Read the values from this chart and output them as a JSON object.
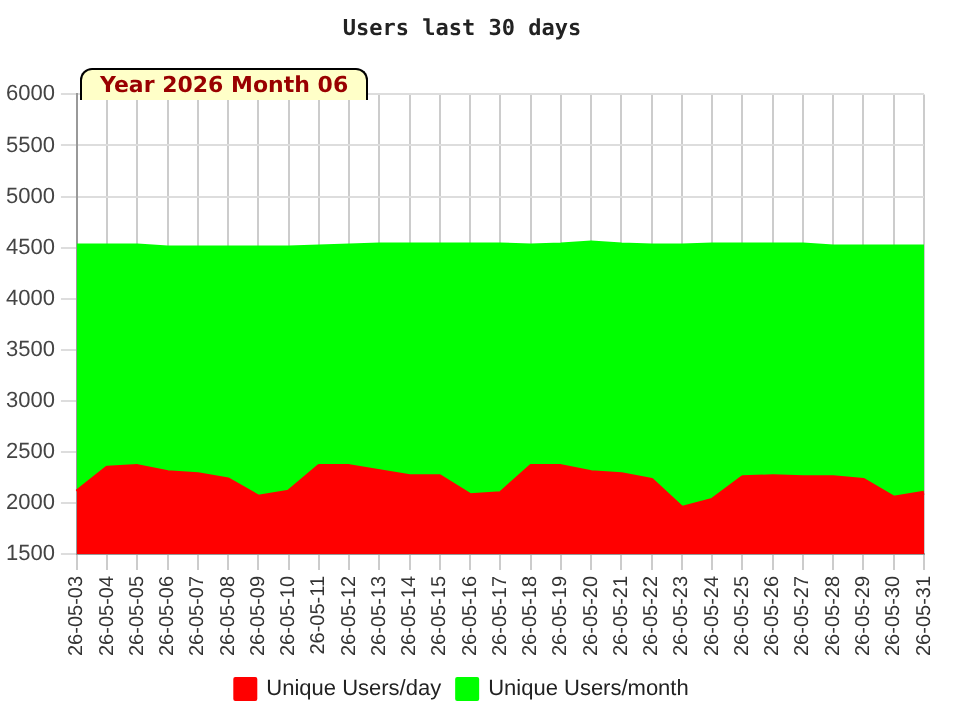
{
  "chart_data": {
    "type": "area",
    "title": "Users last 30 days",
    "annotations": [
      "Year 2026 Month 06"
    ],
    "categories": [
      "26-05-03",
      "26-05-04",
      "26-05-05",
      "26-05-06",
      "26-05-07",
      "26-05-08",
      "26-05-09",
      "26-05-10",
      "26-05-11",
      "26-05-12",
      "26-05-13",
      "26-05-14",
      "26-05-15",
      "26-05-16",
      "26-05-17",
      "26-05-18",
      "26-05-19",
      "26-05-20",
      "26-05-21",
      "26-05-22",
      "26-05-23",
      "26-05-24",
      "26-05-25",
      "26-05-26",
      "26-05-27",
      "26-05-28",
      "26-05-29",
      "26-05-30",
      "26-05-31"
    ],
    "series": [
      {
        "name": "Unique Users/month",
        "color": "#00ff00",
        "values": [
          4520,
          4520,
          4520,
          4500,
          4500,
          4500,
          4500,
          4500,
          4510,
          4520,
          4530,
          4530,
          4530,
          4530,
          4530,
          4520,
          4530,
          4550,
          4530,
          4520,
          4520,
          4530,
          4530,
          4530,
          4530,
          4510,
          4510,
          4510,
          4510
        ]
      },
      {
        "name": "Unique Users/day",
        "color": "#ff0000",
        "values": [
          2110,
          2345,
          2360,
          2300,
          2280,
          2230,
          2060,
          2110,
          2360,
          2360,
          2310,
          2260,
          2260,
          2075,
          2095,
          2360,
          2360,
          2300,
          2280,
          2225,
          1950,
          2030,
          2250,
          2260,
          2250,
          2250,
          2225,
          2050,
          2100
        ]
      }
    ],
    "ylim": [
      1500,
      6000
    ],
    "yticks": [
      1500,
      2000,
      2500,
      3000,
      3500,
      4000,
      4500,
      5000,
      5500,
      6000
    ],
    "grid": true,
    "legend": "bottom",
    "marker": "none"
  }
}
